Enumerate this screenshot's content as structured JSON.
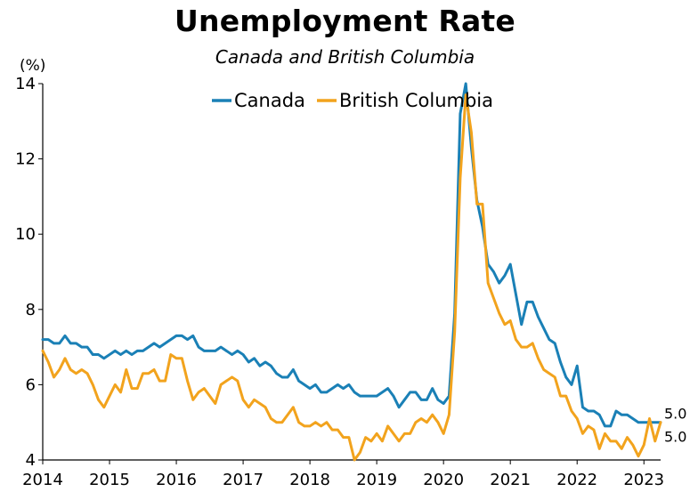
{
  "chart_data": {
    "type": "line",
    "title": "Unemployment Rate",
    "subtitle": "Canada and British Columbia",
    "ylabel": "(%)",
    "xlabel": "",
    "ylim": [
      4,
      14
    ],
    "yticks": [
      4,
      6,
      8,
      10,
      12,
      14
    ],
    "xlim": [
      2014.0,
      2023.25
    ],
    "xticks": [
      "2014",
      "2015",
      "2016",
      "2017",
      "2018",
      "2019",
      "2020",
      "2021",
      "2022",
      "2023"
    ],
    "legend_position": "top-center",
    "grid": false,
    "x_start": "2014-01",
    "x_frequency": "monthly",
    "series": [
      {
        "name": "Canada",
        "color": "#1a80b6",
        "end_label": "5.0",
        "values": [
          7.2,
          7.2,
          7.1,
          7.1,
          7.3,
          7.1,
          7.1,
          7.0,
          7.0,
          6.8,
          6.8,
          6.7,
          6.8,
          6.9,
          6.8,
          6.9,
          6.8,
          6.9,
          6.9,
          7.0,
          7.1,
          7.0,
          7.1,
          7.2,
          7.3,
          7.3,
          7.2,
          7.3,
          7.0,
          6.9,
          6.9,
          6.9,
          7.0,
          6.9,
          6.8,
          6.9,
          6.8,
          6.6,
          6.7,
          6.5,
          6.6,
          6.5,
          6.3,
          6.2,
          6.2,
          6.4,
          6.1,
          6.0,
          5.9,
          6.0,
          5.8,
          5.8,
          5.9,
          6.0,
          5.9,
          6.0,
          5.8,
          5.7,
          5.7,
          5.7,
          5.7,
          5.8,
          5.9,
          5.7,
          5.4,
          5.6,
          5.8,
          5.8,
          5.6,
          5.6,
          5.9,
          5.6,
          5.5,
          5.7,
          7.9,
          13.2,
          14.0,
          12.3,
          10.9,
          10.2,
          9.2,
          9.0,
          8.7,
          8.9,
          9.2,
          8.4,
          7.6,
          8.2,
          8.2,
          7.8,
          7.5,
          7.2,
          7.1,
          6.6,
          6.2,
          6.0,
          6.5,
          5.4,
          5.3,
          5.3,
          5.2,
          4.9,
          4.9,
          5.3,
          5.2,
          5.2,
          5.1,
          5.0,
          5.0,
          5.0,
          5.0,
          5.0
        ]
      },
      {
        "name": "British Columbia",
        "color": "#f2a31d",
        "end_label": "5.0",
        "values": [
          6.9,
          6.6,
          6.2,
          6.4,
          6.7,
          6.4,
          6.3,
          6.4,
          6.3,
          6.0,
          5.6,
          5.4,
          5.7,
          6.0,
          5.8,
          6.4,
          5.9,
          5.9,
          6.3,
          6.3,
          6.4,
          6.1,
          6.1,
          6.8,
          6.7,
          6.7,
          6.1,
          5.6,
          5.8,
          5.9,
          5.7,
          5.5,
          6.0,
          6.1,
          6.2,
          6.1,
          5.6,
          5.4,
          5.6,
          5.5,
          5.4,
          5.1,
          5.0,
          5.0,
          5.2,
          5.4,
          5.0,
          4.9,
          4.9,
          5.0,
          4.9,
          5.0,
          4.8,
          4.8,
          4.6,
          4.6,
          4.0,
          4.2,
          4.6,
          4.5,
          4.7,
          4.5,
          4.9,
          4.7,
          4.5,
          4.7,
          4.7,
          5.0,
          5.1,
          5.0,
          5.2,
          5.0,
          4.7,
          5.2,
          7.4,
          11.5,
          13.7,
          12.7,
          10.8,
          10.8,
          8.7,
          8.3,
          7.9,
          7.6,
          7.7,
          7.2,
          7.0,
          7.0,
          7.1,
          6.7,
          6.4,
          6.3,
          6.2,
          5.7,
          5.7,
          5.3,
          5.1,
          4.7,
          4.9,
          4.8,
          4.3,
          4.7,
          4.5,
          4.5,
          4.3,
          4.6,
          4.4,
          4.1,
          4.4,
          5.1,
          4.5,
          5.0
        ]
      }
    ]
  }
}
